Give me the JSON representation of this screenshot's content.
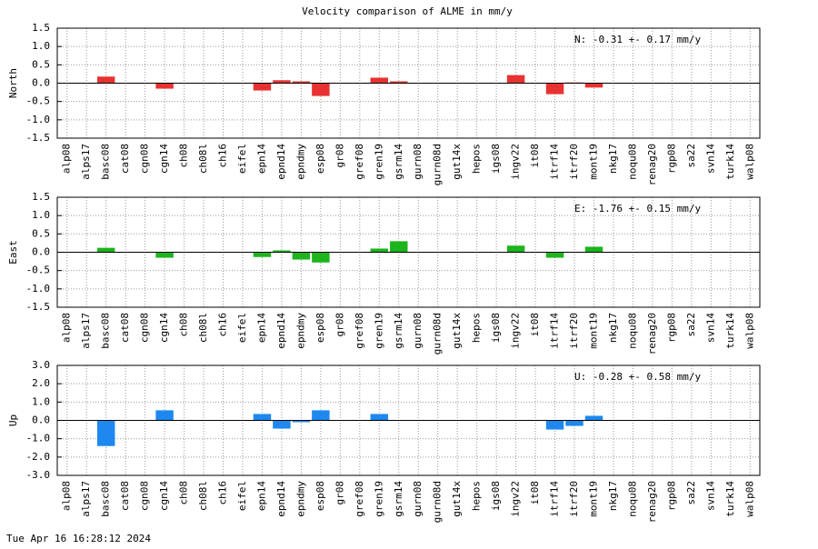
{
  "title": "Velocity comparison of ALME in mm/y",
  "timestamp": "Tue Apr 16 16:28:12 2024",
  "chart_data": [
    {
      "type": "bar",
      "ylabel": "North",
      "annotation": "N:  -0.31 +-  0.17 mm/y",
      "categories": [
        "alp08",
        "alps17",
        "basc08",
        "cat08",
        "cgn08",
        "cgn14",
        "ch08",
        "ch08l",
        "ch16",
        "eifel",
        "epn14",
        "epnd14",
        "epndmy",
        "esp08",
        "gr08",
        "gref08",
        "gren19",
        "gsrm14",
        "gurn08",
        "gurn08d",
        "gut14x",
        "hepos",
        "igs08",
        "ingv22",
        "it08",
        "itrf14",
        "itrf20",
        "mont19",
        "nkg17",
        "noqu08",
        "renag20",
        "rgp08",
        "sa22",
        "svn14",
        "turk14",
        "walp08"
      ],
      "values": [
        null,
        null,
        0.18,
        null,
        null,
        -0.15,
        null,
        null,
        null,
        null,
        -0.2,
        0.08,
        0.05,
        -0.35,
        null,
        null,
        0.15,
        0.05,
        null,
        null,
        null,
        null,
        null,
        0.22,
        null,
        -0.3,
        0.02,
        -0.12,
        null,
        null,
        null,
        null,
        null,
        null,
        null,
        null
      ],
      "color": "#e83232",
      "ylim": [
        -1.5,
        1.5
      ],
      "yticks": [
        1.5,
        {
          "value": 1,
          "label": "1.0"
        },
        0.5,
        {
          "value": 0,
          "label": "0.0"
        },
        -0.5,
        {
          "value": -1,
          "label": "-1.0"
        },
        -1.5
      ],
      "grid": true
    },
    {
      "type": "bar",
      "ylabel": "East",
      "annotation": "E:  -1.76 +-  0.15 mm/y",
      "categories": [
        "alp08",
        "alps17",
        "basc08",
        "cat08",
        "cgn08",
        "cgn14",
        "ch08",
        "ch08l",
        "ch16",
        "eifel",
        "epn14",
        "epnd14",
        "epndmy",
        "esp08",
        "gr08",
        "gref08",
        "gren19",
        "gsrm14",
        "gurn08",
        "gurn08d",
        "gut14x",
        "hepos",
        "igs08",
        "ingv22",
        "it08",
        "itrf14",
        "itrf20",
        "mont19",
        "nkg17",
        "noqu08",
        "renag20",
        "rgp08",
        "sa22",
        "svn14",
        "turk14",
        "walp08"
      ],
      "values": [
        null,
        null,
        0.12,
        null,
        null,
        -0.15,
        null,
        null,
        null,
        null,
        -0.13,
        0.05,
        -0.2,
        -0.28,
        null,
        null,
        0.1,
        0.3,
        null,
        null,
        null,
        null,
        null,
        0.18,
        null,
        -0.15,
        null,
        0.15,
        null,
        null,
        null,
        null,
        null,
        null,
        null,
        null
      ],
      "color": "#1db41d",
      "ylim": [
        -1.5,
        1.5
      ],
      "yticks": [
        1.5,
        {
          "value": 1,
          "label": "1.0"
        },
        0.5,
        {
          "value": 0,
          "label": "0.0"
        },
        -0.5,
        {
          "value": -1,
          "label": "-1.0"
        },
        -1.5
      ],
      "grid": true
    },
    {
      "type": "bar",
      "ylabel": "Up",
      "annotation": "U:  -0.28 +-  0.58 mm/y",
      "categories": [
        "alp08",
        "alps17",
        "basc08",
        "cat08",
        "cgn08",
        "cgn14",
        "ch08",
        "ch08l",
        "ch16",
        "eifel",
        "epn14",
        "epnd14",
        "epndmy",
        "esp08",
        "gr08",
        "gref08",
        "gren19",
        "gsrm14",
        "gurn08",
        "gurn08d",
        "gut14x",
        "hepos",
        "igs08",
        "ingv22",
        "it08",
        "itrf14",
        "itrf20",
        "mont19",
        "nkg17",
        "noqu08",
        "renag20",
        "rgp08",
        "sa22",
        "svn14",
        "turk14",
        "walp08"
      ],
      "values": [
        null,
        null,
        -1.4,
        null,
        null,
        0.55,
        null,
        null,
        null,
        null,
        0.35,
        -0.45,
        -0.1,
        0.55,
        null,
        null,
        0.35,
        null,
        null,
        null,
        null,
        null,
        null,
        null,
        null,
        -0.5,
        -0.3,
        0.25,
        null,
        null,
        null,
        null,
        null,
        null,
        null,
        null
      ],
      "color": "#1e88f0",
      "ylim": [
        -3,
        3
      ],
      "yticks": [
        {
          "value": 3,
          "label": "3.0"
        },
        {
          "value": 2,
          "label": "2.0"
        },
        {
          "value": 1,
          "label": "1.0"
        },
        {
          "value": 0,
          "label": "0.0"
        },
        {
          "value": -1,
          "label": "-1.0"
        },
        {
          "value": -2,
          "label": "-2.0"
        },
        {
          "value": -3,
          "label": "-3.0"
        }
      ],
      "grid": true
    }
  ]
}
